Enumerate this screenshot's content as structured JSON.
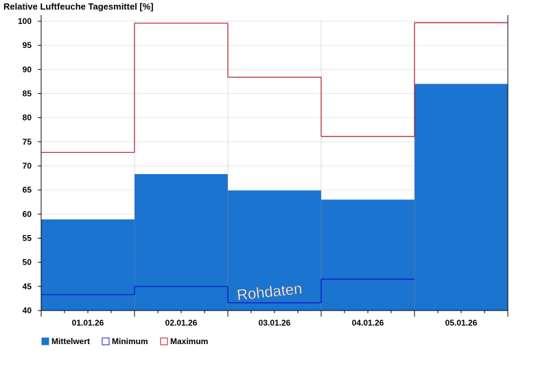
{
  "chart_data": {
    "type": "bar",
    "title": "Relative Luftfeuche Tagesmittel [%]",
    "categories": [
      "01.01.26",
      "02.01.26",
      "03.01.26",
      "04.01.26",
      "05.01.26"
    ],
    "series": [
      {
        "name": "Mittelwert",
        "values": [
          58.9,
          68.3,
          64.9,
          63.0,
          87.0
        ],
        "color": "#1b74cf"
      },
      {
        "name": "Minimum",
        "values": [
          43.3,
          45.0,
          41.6,
          46.5,
          null
        ],
        "color": "#1010c8"
      },
      {
        "name": "Maximum",
        "values": [
          72.8,
          99.6,
          88.4,
          76.1,
          99.7
        ],
        "color": "#b01020"
      }
    ],
    "ylim": [
      40,
      101
    ],
    "yticks": [
      40,
      45,
      50,
      55,
      60,
      65,
      70,
      75,
      80,
      85,
      90,
      95,
      100
    ],
    "grid": true,
    "legend": "bottom-left",
    "watermark": "Rohdaten"
  }
}
